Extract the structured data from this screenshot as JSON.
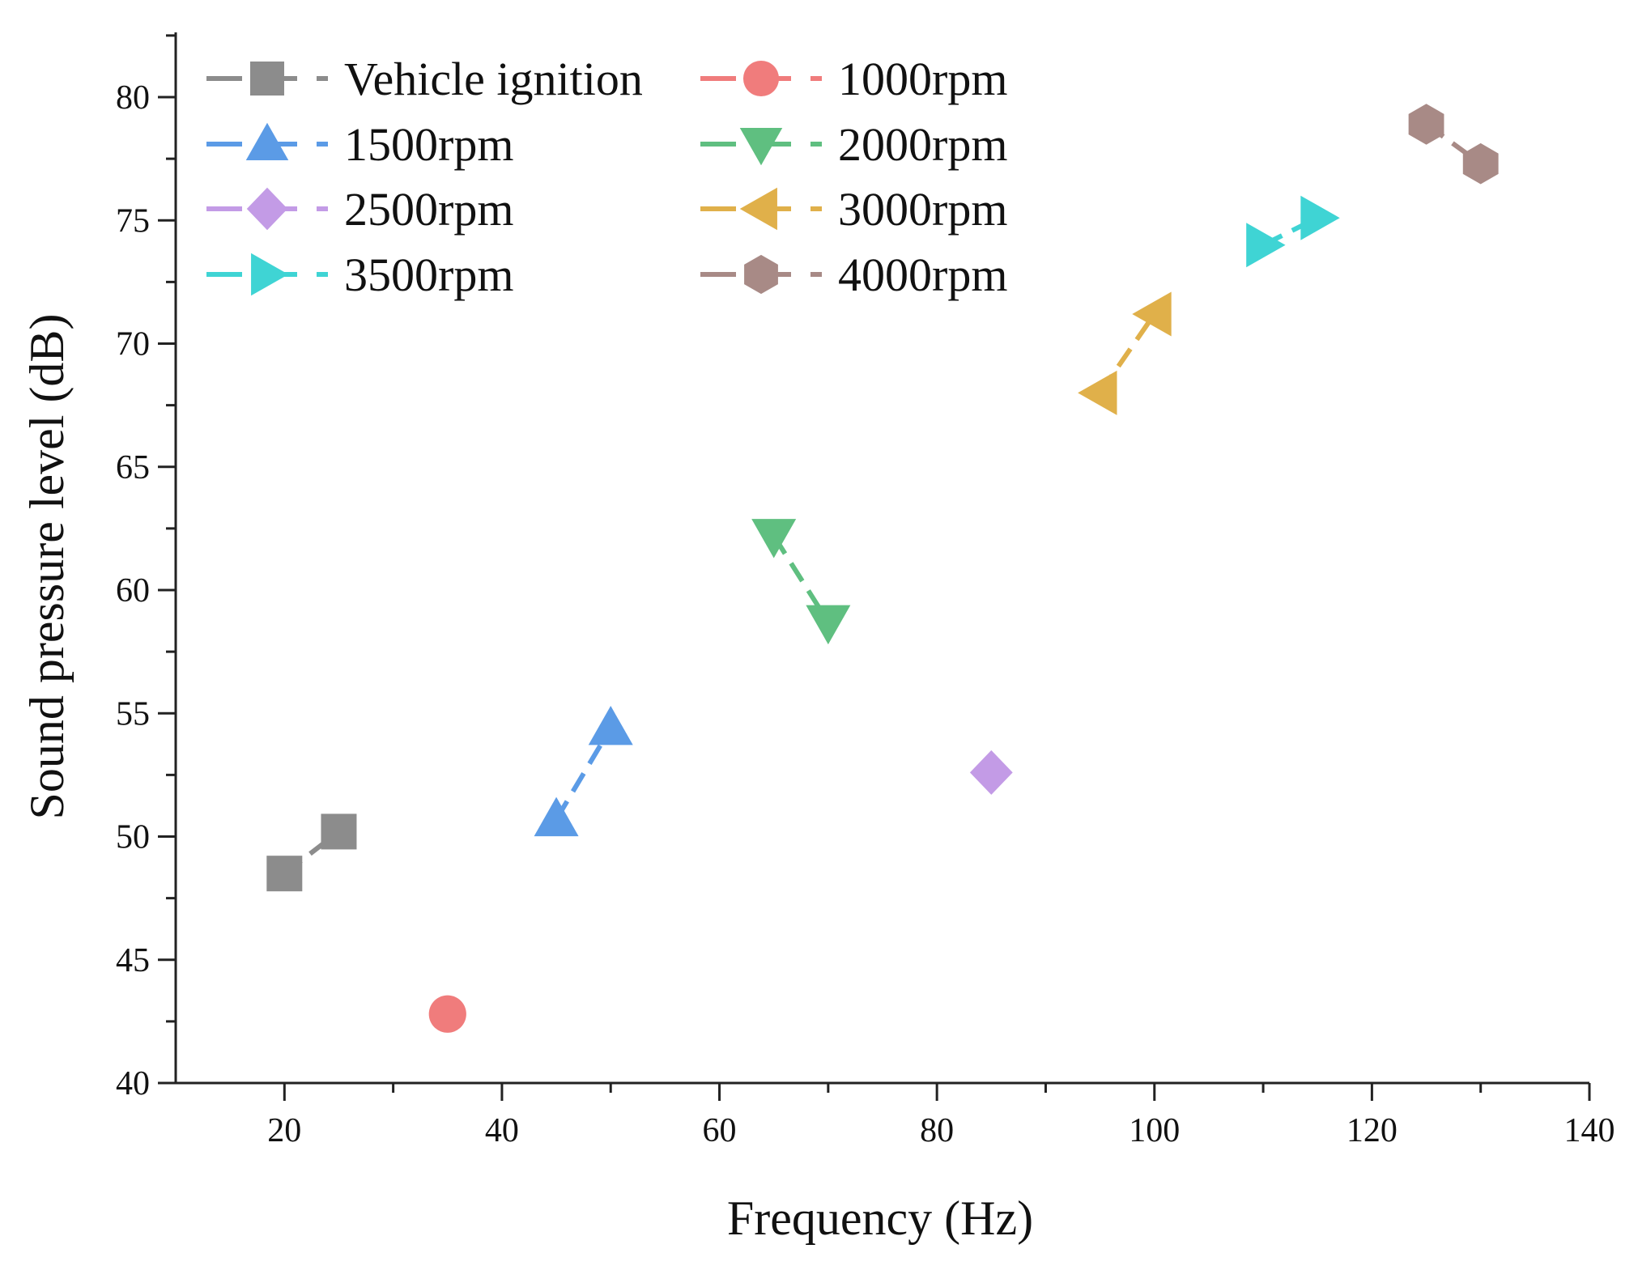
{
  "chart_data": {
    "type": "line",
    "title": "",
    "xlabel": "Frequency (Hz)",
    "ylabel": "Sound pressure level (dB)",
    "xlim": [
      10,
      140
    ],
    "ylim": [
      40,
      83
    ],
    "xticks": [
      20,
      40,
      60,
      80,
      100,
      120,
      140
    ],
    "yticks": [
      40,
      45,
      50,
      55,
      60,
      65,
      70,
      75,
      80
    ],
    "grid": false,
    "legend_position": "top-left",
    "series": [
      {
        "name": "Vehicle ignition",
        "marker": "square",
        "color": "#8c8c8c",
        "points": [
          {
            "x": 20,
            "y": 48.5
          },
          {
            "x": 25,
            "y": 50.2
          }
        ]
      },
      {
        "name": "1000rpm",
        "marker": "circle",
        "color": "#f07c7c",
        "points": [
          {
            "x": 35,
            "y": 42.8
          }
        ]
      },
      {
        "name": "1500rpm",
        "marker": "triangle-up",
        "color": "#5b9be6",
        "points": [
          {
            "x": 45,
            "y": 50.7
          },
          {
            "x": 50,
            "y": 54.4
          }
        ]
      },
      {
        "name": "2000rpm",
        "marker": "triangle-down",
        "color": "#5fbf80",
        "points": [
          {
            "x": 65,
            "y": 62.2
          },
          {
            "x": 70,
            "y": 58.7
          }
        ]
      },
      {
        "name": "2500rpm",
        "marker": "diamond",
        "color": "#c39be6",
        "points": [
          {
            "x": 85,
            "y": 52.6
          }
        ]
      },
      {
        "name": "3000rpm",
        "marker": "triangle-left",
        "color": "#e0b04a",
        "points": [
          {
            "x": 95,
            "y": 68.0
          },
          {
            "x": 100,
            "y": 71.2
          }
        ]
      },
      {
        "name": "3500rpm",
        "marker": "triangle-right",
        "color": "#3fd4d4",
        "points": [
          {
            "x": 110,
            "y": 74.0
          },
          {
            "x": 115,
            "y": 75.1
          }
        ]
      },
      {
        "name": "4000rpm",
        "marker": "hexagon",
        "color": "#a88a86",
        "points": [
          {
            "x": 125,
            "y": 78.9
          },
          {
            "x": 130,
            "y": 77.3
          }
        ]
      }
    ]
  }
}
